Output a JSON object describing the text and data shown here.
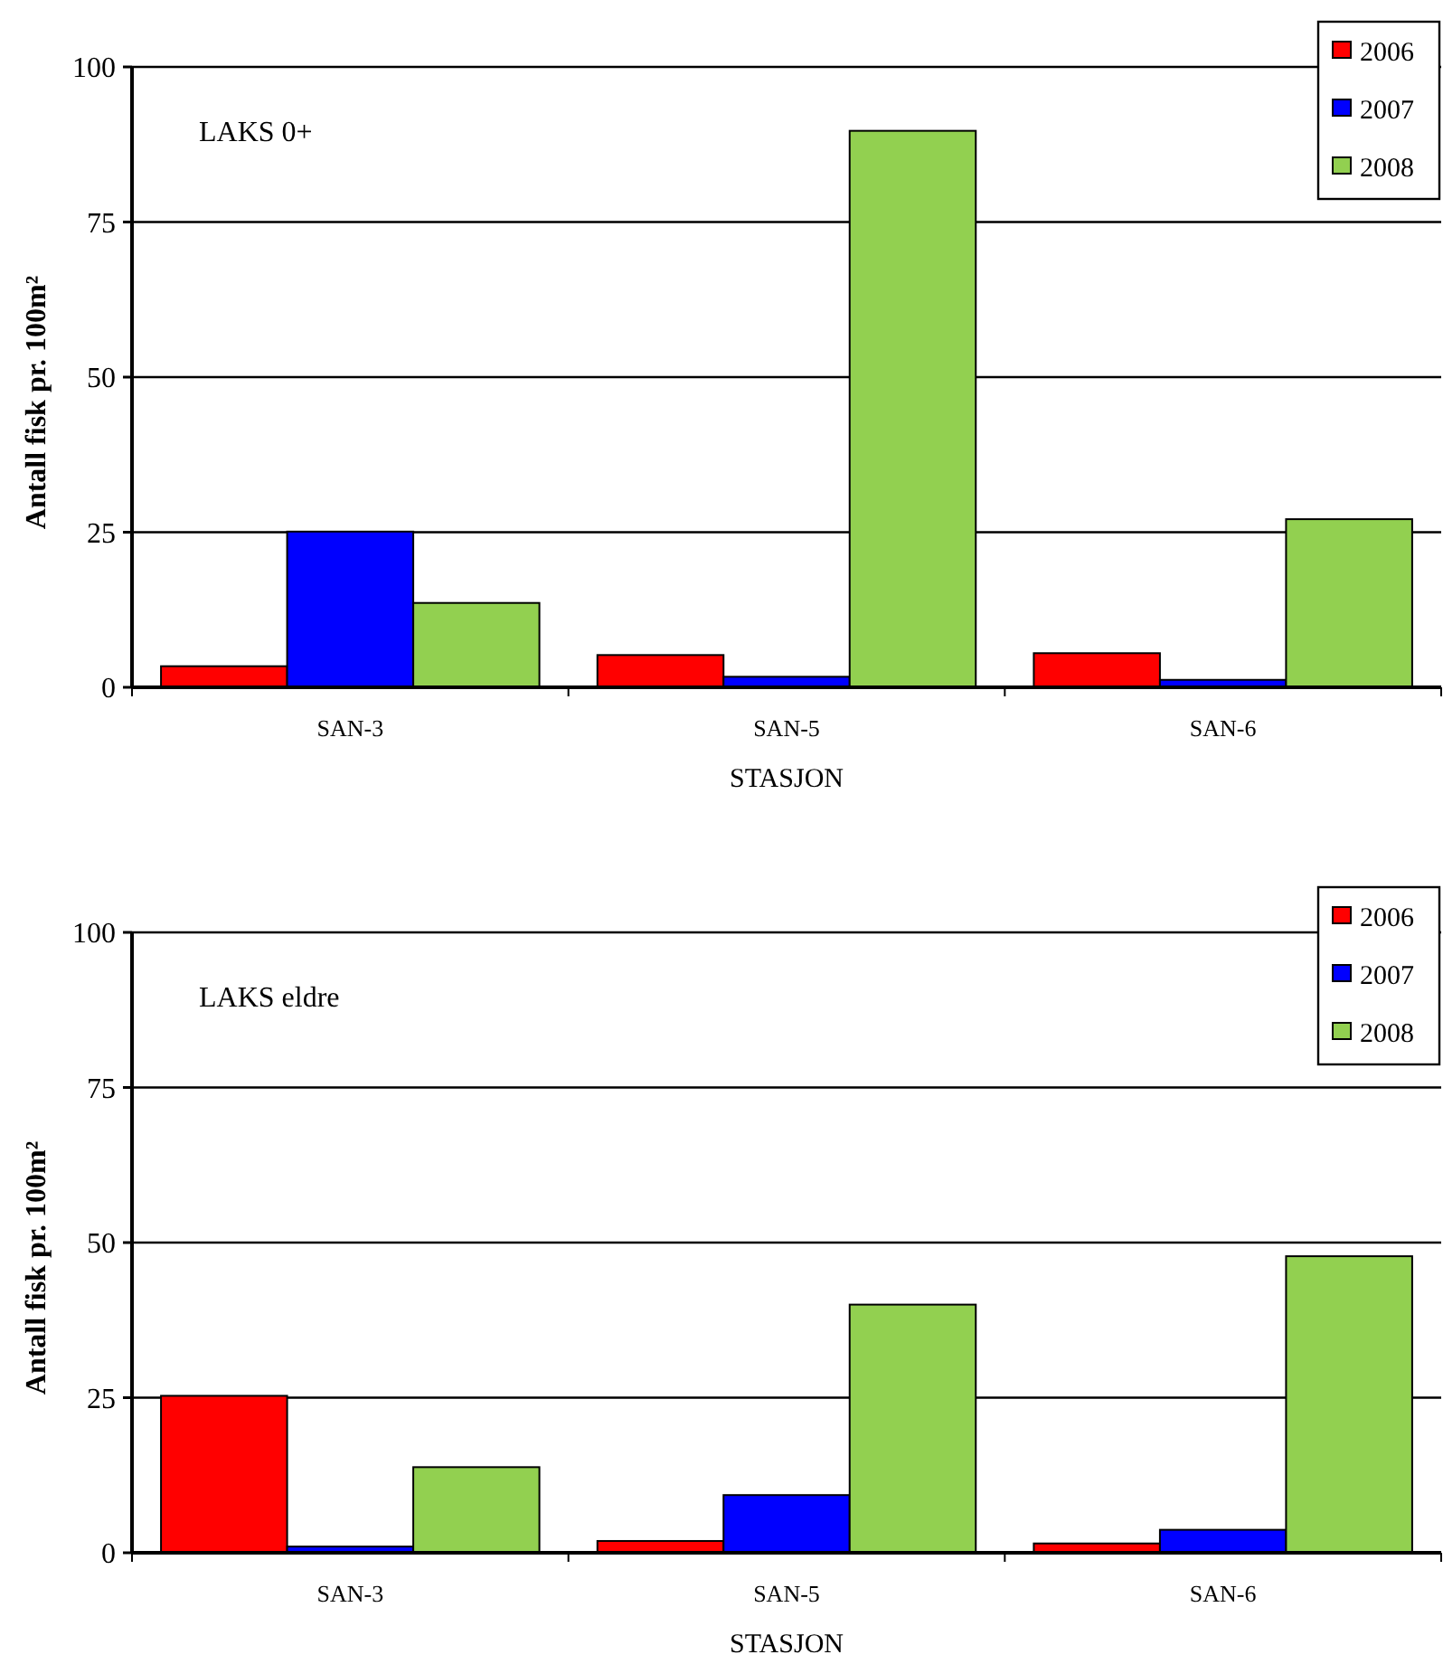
{
  "chart_data": [
    {
      "type": "bar",
      "title": "LAKS 0+",
      "xlabel": "STASJON",
      "ylabel": "Antall fisk pr. 100m²",
      "categories": [
        "SAN-3",
        "SAN-5",
        "SAN-6"
      ],
      "series": [
        {
          "name": "2006",
          "color": "#ff0000",
          "values": [
            3.4,
            5.2,
            5.5
          ]
        },
        {
          "name": "2007",
          "color": "#0000ff",
          "values": [
            25.1,
            1.7,
            1.2
          ]
        },
        {
          "name": "2008",
          "color": "#92d050",
          "values": [
            13.6,
            89.7,
            27.1
          ]
        }
      ],
      "ylim": [
        0,
        100
      ],
      "yticks": [
        0,
        25,
        50,
        75,
        100
      ],
      "grid": "y",
      "legend": "top right"
    },
    {
      "type": "bar",
      "title": "LAKS eldre",
      "xlabel": "STASJON",
      "ylabel": "Antall fisk pr. 100m²",
      "categories": [
        "SAN-3",
        "SAN-5",
        "SAN-6"
      ],
      "series": [
        {
          "name": "2006",
          "color": "#ff0000",
          "values": [
            25.3,
            1.9,
            1.5
          ]
        },
        {
          "name": "2007",
          "color": "#0000ff",
          "values": [
            1.0,
            9.3,
            3.7
          ]
        },
        {
          "name": "2008",
          "color": "#92d050",
          "values": [
            13.8,
            40.0,
            47.8
          ]
        }
      ],
      "ylim": [
        0,
        100
      ],
      "yticks": [
        0,
        25,
        50,
        75,
        100
      ],
      "grid": "y",
      "legend": "top right"
    }
  ]
}
